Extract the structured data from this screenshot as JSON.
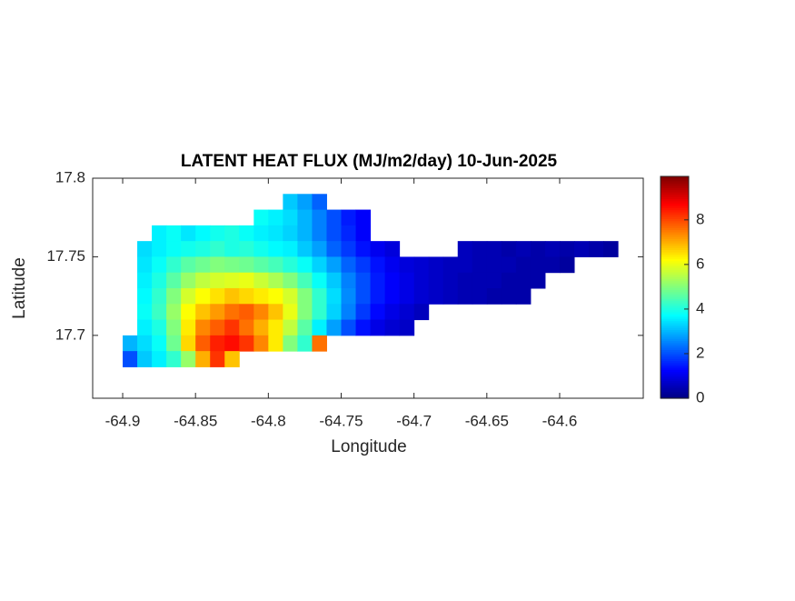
{
  "chart_data": {
    "type": "heatmap",
    "title": "LATENT HEAT FLUX (MJ/m2/day) 10-Jun-2025",
    "xlabel": "Longitude",
    "ylabel": "Latitude",
    "colormap": "jet",
    "x": [
      -64.895,
      -64.885,
      -64.875,
      -64.865,
      -64.855,
      -64.845,
      -64.835,
      -64.825,
      -64.815,
      -64.805,
      -64.795,
      -64.785,
      -64.775,
      -64.765,
      -64.755,
      -64.745,
      -64.735,
      -64.725,
      -64.715,
      -64.705,
      -64.695,
      -64.685,
      -64.675,
      -64.665,
      -64.655,
      -64.645,
      -64.635,
      -64.625,
      -64.615,
      -64.605,
      -64.595,
      -64.585,
      -64.575,
      -64.565
    ],
    "y": [
      17.785,
      17.775,
      17.765,
      17.755,
      17.745,
      17.735,
      17.725,
      17.715,
      17.705,
      17.695,
      17.685
    ],
    "values": [
      [
        null,
        null,
        null,
        null,
        null,
        null,
        null,
        null,
        null,
        null,
        null,
        3.2,
        2.8,
        2.2,
        null,
        null,
        null,
        null,
        null,
        null,
        null,
        null,
        null,
        null,
        null,
        null,
        null,
        null,
        null,
        null,
        null,
        null,
        null,
        null
      ],
      [
        null,
        null,
        null,
        null,
        null,
        null,
        null,
        null,
        null,
        3.8,
        3.6,
        3.4,
        3.0,
        2.5,
        2.0,
        1.5,
        1.2,
        null,
        null,
        null,
        null,
        null,
        null,
        null,
        null,
        null,
        null,
        null,
        null,
        null,
        null,
        null,
        null,
        null
      ],
      [
        null,
        null,
        3.6,
        3.8,
        3.5,
        3.7,
        3.9,
        4.0,
        3.8,
        3.6,
        3.5,
        3.3,
        3.0,
        2.5,
        2.0,
        1.6,
        1.2,
        null,
        null,
        null,
        null,
        null,
        null,
        null,
        null,
        null,
        null,
        null,
        null,
        null,
        null,
        null,
        null,
        null
      ],
      [
        null,
        3.4,
        3.6,
        3.8,
        3.9,
        4.0,
        4.2,
        4.0,
        4.1,
        3.9,
        3.7,
        3.6,
        3.2,
        2.8,
        2.2,
        1.8,
        1.4,
        1.1,
        0.9,
        null,
        null,
        null,
        null,
        0.6,
        0.5,
        0.5,
        0.4,
        0.5,
        0.4,
        0.5,
        0.4,
        0.5,
        0.4,
        0.3
      ],
      [
        null,
        3.5,
        3.8,
        4.2,
        4.6,
        4.8,
        5.0,
        4.9,
        4.8,
        4.6,
        4.4,
        4.1,
        3.8,
        3.3,
        2.8,
        2.2,
        1.8,
        1.4,
        1.1,
        0.9,
        0.8,
        0.7,
        0.6,
        0.6,
        0.5,
        0.5,
        0.5,
        0.4,
        0.4,
        0.4,
        0.3,
        null,
        null,
        null
      ],
      [
        null,
        3.6,
        4.0,
        4.6,
        5.2,
        5.6,
        5.8,
        5.9,
        6.0,
        5.7,
        5.4,
        5.0,
        4.4,
        3.8,
        3.2,
        2.5,
        2.0,
        1.5,
        1.2,
        1.0,
        0.8,
        0.7,
        0.6,
        0.5,
        0.5,
        0.5,
        0.4,
        0.4,
        0.4,
        null,
        null,
        null,
        null,
        null
      ],
      [
        null,
        3.7,
        4.2,
        5.0,
        5.8,
        6.2,
        6.5,
        6.8,
        6.6,
        6.4,
        6.2,
        5.8,
        5.0,
        4.2,
        3.4,
        2.6,
        2.0,
        1.5,
        1.2,
        1.0,
        0.8,
        0.7,
        0.6,
        0.5,
        0.5,
        0.4,
        0.4,
        0.4,
        null,
        null,
        null,
        null,
        null,
        null
      ],
      [
        null,
        3.8,
        4.3,
        5.2,
        6.2,
        6.8,
        7.2,
        7.6,
        7.8,
        7.4,
        6.8,
        6.0,
        5.0,
        4.2,
        3.3,
        2.5,
        1.8,
        1.3,
        1.0,
        0.8,
        0.6,
        null,
        null,
        null,
        null,
        null,
        null,
        null,
        null,
        null,
        null,
        null,
        null,
        null
      ],
      [
        null,
        3.6,
        4.0,
        5.0,
        6.4,
        7.4,
        7.8,
        8.2,
        7.6,
        7.0,
        6.4,
        5.6,
        4.6,
        3.6,
        2.8,
        2.0,
        1.4,
        1.0,
        0.8,
        0.7,
        null,
        null,
        null,
        null,
        null,
        null,
        null,
        null,
        null,
        null,
        null,
        null,
        null,
        null
      ],
      [
        3.0,
        3.4,
        3.8,
        4.8,
        6.6,
        7.8,
        8.4,
        8.6,
        8.2,
        7.4,
        6.4,
        5.0,
        4.2,
        7.6,
        null,
        null,
        null,
        null,
        null,
        null,
        null,
        null,
        null,
        null,
        null,
        null,
        null,
        null,
        null,
        null,
        null,
        null,
        null,
        null
      ],
      [
        2.0,
        3.2,
        3.6,
        4.2,
        5.2,
        7.0,
        8.2,
        6.8,
        null,
        null,
        null,
        null,
        null,
        null,
        null,
        null,
        null,
        null,
        null,
        null,
        null,
        null,
        null,
        null,
        null,
        null,
        null,
        null,
        null,
        null,
        null,
        null,
        null,
        null
      ]
    ],
    "xlim": [
      -64.9206,
      -64.5426
    ],
    "xticks": [
      -64.9,
      -64.85,
      -64.8,
      -64.75,
      -64.7,
      -64.65,
      -64.6
    ],
    "ylim": [
      17.66,
      17.8
    ],
    "yticks": [
      17.7,
      17.75,
      17.8
    ],
    "clim": [
      0,
      9.95
    ],
    "cticks": [
      0,
      2,
      4,
      6,
      8
    ]
  }
}
